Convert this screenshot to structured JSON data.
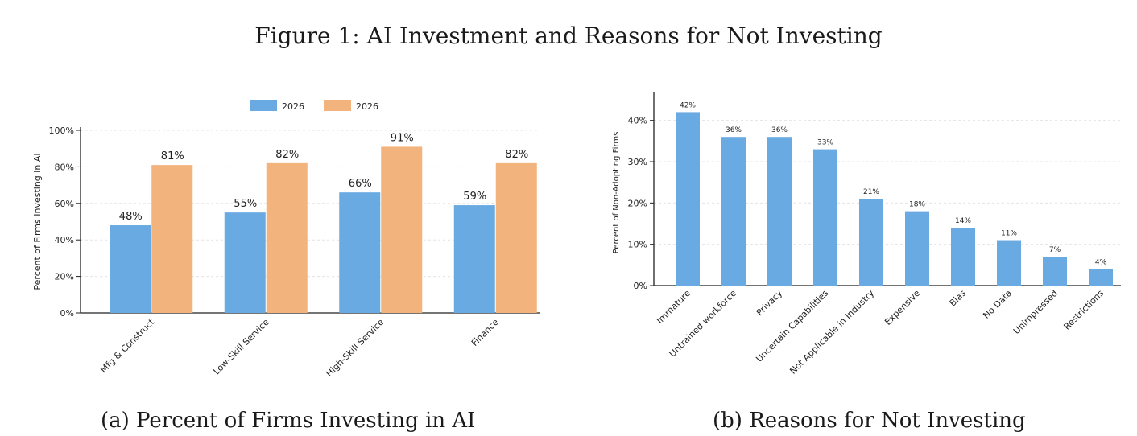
{
  "figure": {
    "title": "Figure 1: AI Investment and Reasons for Not Investing",
    "caption_a": "(a) Percent of Firms Investing in AI",
    "caption_b": "(b) Reasons for Not Investing"
  },
  "colors": {
    "blue": "#6aaae2",
    "orange": "#f2b37c",
    "axis": "#222222",
    "grid": "#e3e3e3"
  },
  "chart_data": [
    {
      "type": "bar",
      "title": "",
      "xlabel": "",
      "ylabel": "Percent of Firms Investing in AI",
      "categories": [
        "Mfg & Construct",
        "Low-Skill Service",
        "High-Skill Service",
        "Finance"
      ],
      "series": [
        {
          "name": "2026",
          "values": [
            48,
            55,
            66,
            59
          ],
          "labels": [
            "48%",
            "55%",
            "66%",
            "59%"
          ]
        },
        {
          "name": "2026",
          "values": [
            81,
            82,
            91,
            82
          ],
          "labels": [
            "81%",
            "82%",
            "91%",
            "82%"
          ]
        }
      ],
      "ylim": [
        0,
        100
      ],
      "yticks": [
        0,
        20,
        40,
        60,
        80,
        100
      ],
      "yticklabels": [
        "0%",
        "20%",
        "40%",
        "60%",
        "80%",
        "100%"
      ],
      "grid": true,
      "legend": "top"
    },
    {
      "type": "bar",
      "title": "",
      "xlabel": "",
      "ylabel": "Percent of Non-Adopting Firms",
      "categories": [
        "Immature",
        "Untrained workforce",
        "Privacy",
        "Uncertain Capabilities",
        "Not Applicable in Industry",
        "Expensive",
        "Bias",
        "No Data",
        "Unimpressed",
        "Restrictions"
      ],
      "values": [
        42,
        36,
        36,
        33,
        21,
        18,
        14,
        11,
        7,
        4
      ],
      "labels": [
        "42%",
        "36%",
        "36%",
        "33%",
        "21%",
        "18%",
        "14%",
        "11%",
        "7%",
        "4%"
      ],
      "ylim": [
        0,
        45
      ],
      "yticks": [
        0,
        10,
        20,
        30,
        40
      ],
      "yticklabels": [
        "0%",
        "10%",
        "20%",
        "30%",
        "40%"
      ],
      "grid": true
    }
  ]
}
